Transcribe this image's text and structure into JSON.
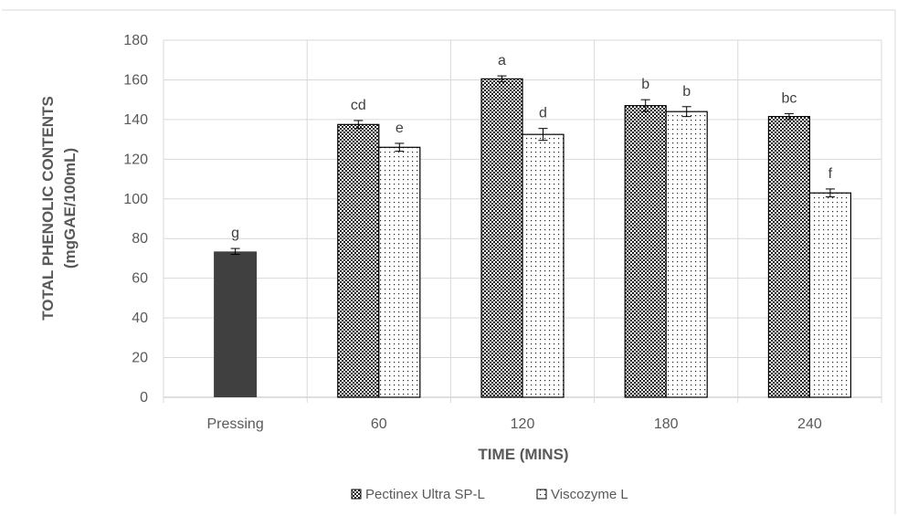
{
  "chart_data": {
    "type": "bar",
    "title": "",
    "xlabel": "TIME (MINS)",
    "ylabel_line1": "TOTAL PHENOLIC CONTENTS",
    "ylabel_line2": "(mgGAE/100mL)",
    "ylim": [
      0,
      180
    ],
    "yticks": [
      "0",
      "20",
      "40",
      "60",
      "80",
      "100",
      "120",
      "140",
      "160",
      "180"
    ],
    "grid": "horizontal",
    "legend_position": "bottom",
    "categories": [
      "Pressing",
      "60",
      "120",
      "180",
      "240"
    ],
    "pressing": {
      "value": 73.5,
      "error": 1.5,
      "letter": "g",
      "color": "#404040"
    },
    "series": [
      {
        "name": "Pectinex Ultra SP-L",
        "pattern": "dense-checker",
        "values": [
          null,
          137.5,
          160.5,
          147,
          141.5
        ],
        "errors": [
          null,
          2,
          1.5,
          3,
          1.5
        ],
        "letters": [
          "",
          "cd",
          "a",
          "b",
          "bc"
        ]
      },
      {
        "name": "Viscozyme L",
        "pattern": "sparse-dots",
        "values": [
          null,
          126,
          132.5,
          144,
          103
        ],
        "errors": [
          null,
          2,
          3,
          2.5,
          2
        ],
        "letters": [
          "",
          "e",
          "d",
          "b",
          "f"
        ]
      }
    ]
  }
}
